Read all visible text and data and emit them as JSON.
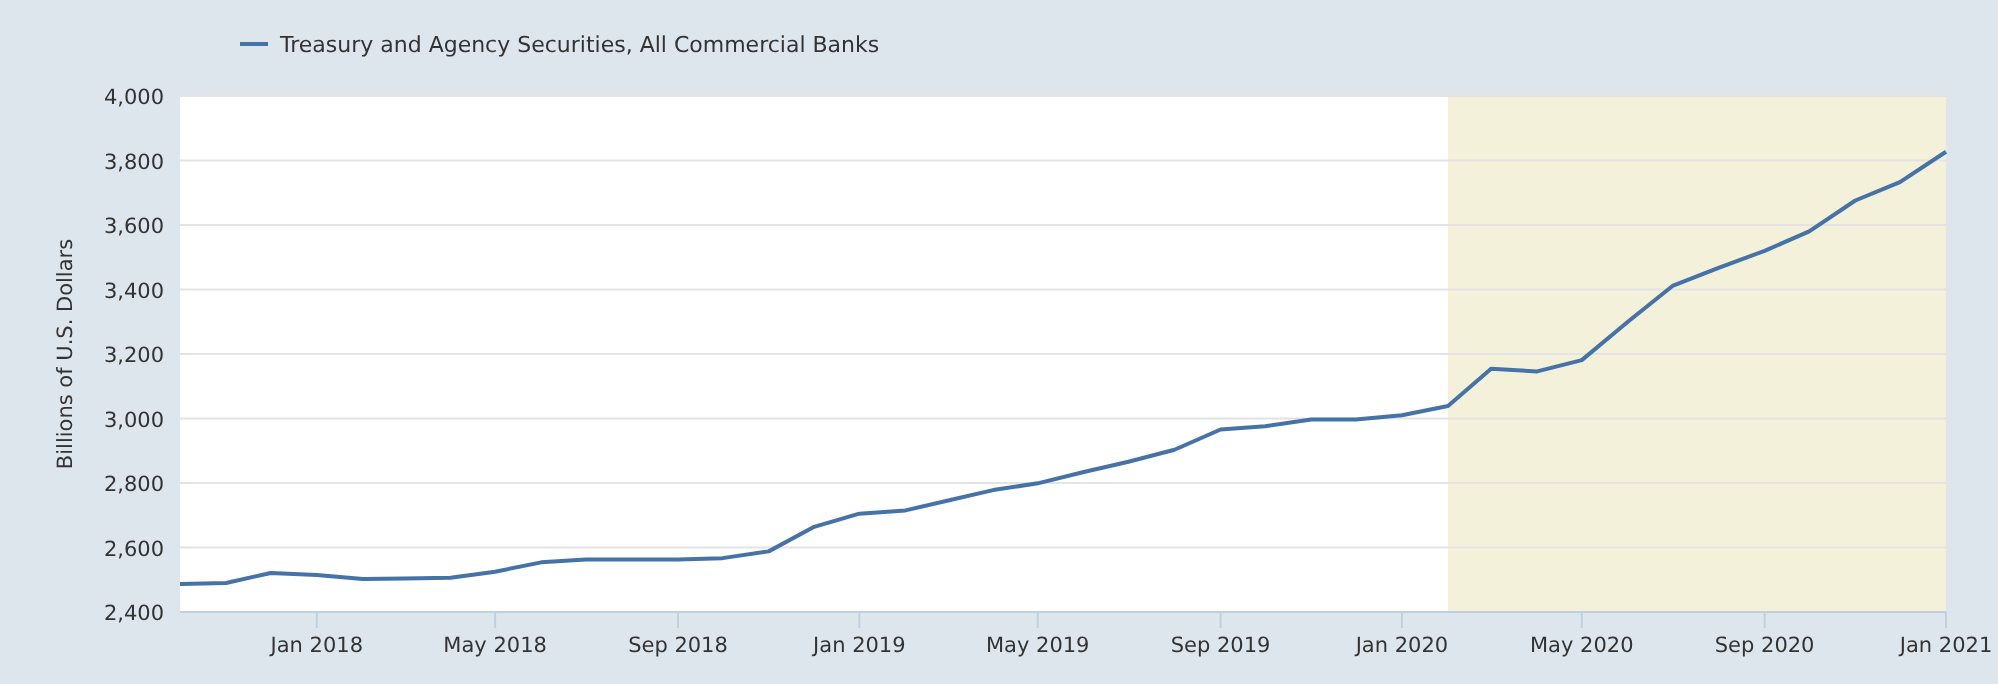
{
  "chart_data": {
    "type": "line",
    "ylabel": "Billions of U.S. Dollars",
    "x": [
      "2017-10-01",
      "2017-11-01",
      "2017-12-01",
      "2018-01-01",
      "2018-02-01",
      "2018-03-01",
      "2018-04-01",
      "2018-05-01",
      "2018-06-01",
      "2018-07-01",
      "2018-08-01",
      "2018-09-01",
      "2018-10-01",
      "2018-11-01",
      "2018-12-01",
      "2019-01-01",
      "2019-02-01",
      "2019-03-01",
      "2019-04-01",
      "2019-05-01",
      "2019-06-01",
      "2019-07-01",
      "2019-08-01",
      "2019-09-01",
      "2019-10-01",
      "2019-11-01",
      "2019-12-01",
      "2020-01-01",
      "2020-02-01",
      "2020-03-01",
      "2020-04-01",
      "2020-05-01",
      "2020-06-01",
      "2020-07-01",
      "2020-08-01",
      "2020-09-01",
      "2020-10-01",
      "2020-11-01",
      "2020-12-01",
      "2021-01-01"
    ],
    "series": [
      {
        "name": "Treasury and Agency Securities, All Commercial Banks",
        "color": "#4572a7",
        "values": [
          2487,
          2490,
          2521,
          2515,
          2502,
          2504,
          2506,
          2525,
          2554,
          2563,
          2563,
          2563,
          2567,
          2588,
          2663,
          2705,
          2715,
          2745,
          2778,
          2799,
          2834,
          2866,
          2903,
          2966,
          2976,
          2997,
          2997,
          3010,
          3039,
          3154,
          3146,
          3181,
          3300,
          3411,
          3467,
          3520,
          3580,
          3676,
          3733,
          3827
        ]
      }
    ],
    "xlim": [
      "2017-10-01",
      "2021-01-01"
    ],
    "xticks": [
      {
        "value": "2018-01-01",
        "label": "Jan 2018"
      },
      {
        "value": "2018-05-01",
        "label": "May 2018"
      },
      {
        "value": "2018-09-01",
        "label": "Sep 2018"
      },
      {
        "value": "2019-01-01",
        "label": "Jan 2019"
      },
      {
        "value": "2019-05-01",
        "label": "May 2019"
      },
      {
        "value": "2019-09-01",
        "label": "Sep 2019"
      },
      {
        "value": "2020-01-01",
        "label": "Jan 2020"
      },
      {
        "value": "2020-05-01",
        "label": "May 2020"
      },
      {
        "value": "2020-09-01",
        "label": "Sep 2020"
      },
      {
        "value": "2021-01-01",
        "label": "Jan 2021"
      }
    ],
    "ylim": [
      2400,
      4000
    ],
    "yticks": [
      {
        "value": 2400,
        "label": "2,400"
      },
      {
        "value": 2600,
        "label": "2,600"
      },
      {
        "value": 2800,
        "label": "2,800"
      },
      {
        "value": 3000,
        "label": "3,000"
      },
      {
        "value": 3200,
        "label": "3,200"
      },
      {
        "value": 3400,
        "label": "3,400"
      },
      {
        "value": 3600,
        "label": "3,600"
      },
      {
        "value": 3800,
        "label": "3,800"
      },
      {
        "value": 4000,
        "label": "4,000"
      }
    ],
    "bands": [
      {
        "axis": "x",
        "from": "2020-02-01",
        "to": "2021-01-01",
        "color": "#f3f1da"
      }
    ],
    "grid": "y",
    "legend": "top left",
    "marker": "none",
    "line_style": "solid"
  }
}
